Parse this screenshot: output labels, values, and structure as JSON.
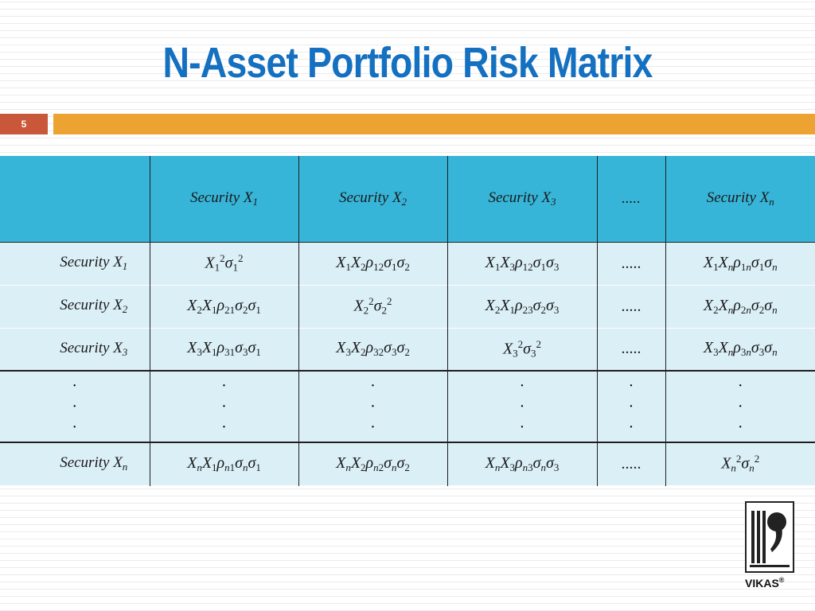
{
  "slide": {
    "title": "N-Asset Portfolio Risk Matrix",
    "number": "5"
  },
  "table": {
    "columns": [
      {
        "base": "Security X",
        "sub": "1"
      },
      {
        "base": "Security X",
        "sub": "2"
      },
      {
        "base": "Security X",
        "sub": "3"
      },
      {
        "text": "....."
      },
      {
        "base": "Security X",
        "sub": "n"
      }
    ],
    "ellipsis": ".....",
    "dots": "·",
    "rows": [
      {
        "head": {
          "base": "Security X",
          "sub": "1"
        }
      },
      {
        "head": {
          "base": "Security X",
          "sub": "2"
        }
      },
      {
        "head": {
          "base": "Security X",
          "sub": "3"
        }
      },
      {
        "head": {
          "base": "Security X",
          "sub": "n"
        }
      }
    ]
  },
  "logo": {
    "brand": "VIKAS",
    "registered": "®",
    "icon": "book-comma-logo-icon"
  },
  "colors": {
    "title": "#1470c0",
    "slide_number_bg": "#c9573a",
    "accent_bar": "#eca332",
    "table_header": "#37b5d8",
    "table_body": "#dbeff7"
  }
}
